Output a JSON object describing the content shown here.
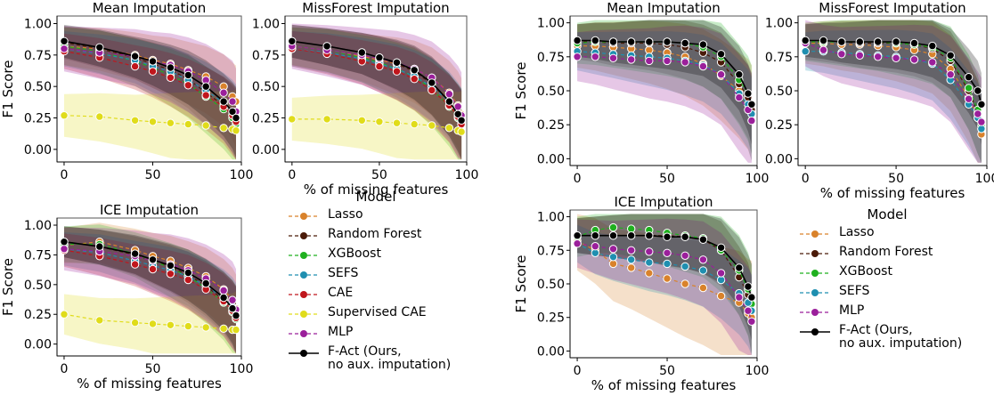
{
  "colors": {
    "Lasso": "#d9822b",
    "Random Forest": "#4a1a08",
    "XGBoost": "#1fb01f",
    "SEFS": "#1f8fb0",
    "CAE": "#c0161c",
    "Supervised CAE": "#e0dc1a",
    "MLP": "#9b1f9b",
    "F-Act (Ours,\n no aux. imputation)": "#000000"
  },
  "legend_left": {
    "title": "Model",
    "items": [
      "Lasso",
      "Random Forest",
      "XGBoost",
      "SEFS",
      "CAE",
      "Supervised CAE",
      "MLP",
      "F-Act (Ours,\n no aux. imputation)"
    ]
  },
  "legend_right": {
    "title": "Model",
    "items": [
      "Lasso",
      "Random Forest",
      "XGBoost",
      "SEFS",
      "MLP",
      "F-Act (Ours,\n no aux. imputation)"
    ]
  },
  "chart_data": [
    {
      "type": "line",
      "title": "Mean Imputation",
      "xlabel": "",
      "ylabel": "F1 Score",
      "xlim": [
        -4,
        100
      ],
      "ylim": [
        -0.1,
        1.06
      ],
      "xticks": [
        0,
        50,
        100
      ],
      "yticks": [
        0.0,
        0.25,
        0.5,
        0.75,
        1.0
      ],
      "x": [
        0,
        20,
        40,
        50,
        60,
        70,
        80,
        90,
        95,
        97
      ],
      "series": [
        {
          "name": "Lasso",
          "values": [
            0.82,
            0.8,
            0.75,
            0.71,
            0.68,
            0.63,
            0.58,
            0.5,
            0.42,
            0.38
          ],
          "band": 0.15
        },
        {
          "name": "Random Forest",
          "values": [
            0.85,
            0.8,
            0.73,
            0.68,
            0.63,
            0.56,
            0.45,
            0.35,
            0.27,
            0.22
          ],
          "band": 0.13
        },
        {
          "name": "XGBoost",
          "values": [
            0.82,
            0.78,
            0.7,
            0.65,
            0.59,
            0.52,
            0.42,
            0.32,
            0.25,
            0.2
          ],
          "band": 0.15
        },
        {
          "name": "SEFS",
          "values": [
            0.8,
            0.76,
            0.71,
            0.66,
            0.62,
            0.55,
            0.47,
            0.37,
            0.3,
            0.25
          ],
          "band": 0.14
        },
        {
          "name": "CAE",
          "values": [
            0.78,
            0.73,
            0.66,
            0.62,
            0.57,
            0.51,
            0.43,
            0.34,
            0.27,
            0.22
          ],
          "band": 0.14
        },
        {
          "name": "Supervised CAE",
          "values": [
            0.27,
            0.26,
            0.23,
            0.22,
            0.21,
            0.2,
            0.19,
            0.17,
            0.16,
            0.15
          ],
          "band": 0.17
        },
        {
          "name": "MLP",
          "values": [
            0.8,
            0.77,
            0.74,
            0.7,
            0.67,
            0.62,
            0.55,
            0.45,
            0.38,
            0.3
          ],
          "band": 0.18
        },
        {
          "name": "F-Act (Ours,\n no aux. imputation)",
          "values": [
            0.86,
            0.81,
            0.74,
            0.7,
            0.65,
            0.59,
            0.5,
            0.38,
            0.3,
            0.25
          ],
          "band": 0.13
        }
      ]
    },
    {
      "type": "line",
      "title": "MissForest Imputation",
      "xlabel": "% of missing features",
      "ylabel": "",
      "xlim": [
        -4,
        100
      ],
      "ylim": [
        -0.1,
        1.06
      ],
      "xticks": [
        0,
        50,
        100
      ],
      "yticks": [
        0.0,
        0.25,
        0.5,
        0.75,
        1.0
      ],
      "x": [
        0,
        20,
        40,
        50,
        60,
        70,
        80,
        90,
        95,
        97
      ],
      "series": [
        {
          "name": "Lasso",
          "values": [
            0.82,
            0.79,
            0.74,
            0.71,
            0.68,
            0.64,
            0.57,
            0.45,
            0.35,
            0.28
          ],
          "band": 0.15
        },
        {
          "name": "Random Forest",
          "values": [
            0.86,
            0.82,
            0.77,
            0.73,
            0.68,
            0.62,
            0.52,
            0.38,
            0.27,
            0.22
          ],
          "band": 0.13
        },
        {
          "name": "XGBoost",
          "values": [
            0.82,
            0.79,
            0.73,
            0.69,
            0.64,
            0.58,
            0.48,
            0.34,
            0.25,
            0.2
          ],
          "band": 0.15
        },
        {
          "name": "SEFS",
          "values": [
            0.8,
            0.77,
            0.72,
            0.68,
            0.64,
            0.58,
            0.5,
            0.38,
            0.28,
            0.22
          ],
          "band": 0.14
        },
        {
          "name": "CAE",
          "values": [
            0.8,
            0.76,
            0.7,
            0.66,
            0.62,
            0.56,
            0.47,
            0.35,
            0.26,
            0.2
          ],
          "band": 0.14
        },
        {
          "name": "Supervised CAE",
          "values": [
            0.24,
            0.24,
            0.23,
            0.22,
            0.21,
            0.2,
            0.19,
            0.17,
            0.15,
            0.14
          ],
          "band": 0.17
        },
        {
          "name": "MLP",
          "values": [
            0.82,
            0.79,
            0.75,
            0.72,
            0.69,
            0.64,
            0.57,
            0.44,
            0.34,
            0.27
          ],
          "band": 0.18
        },
        {
          "name": "F-Act (Ours,\n no aux. imputation)",
          "values": [
            0.86,
            0.82,
            0.77,
            0.73,
            0.69,
            0.63,
            0.53,
            0.38,
            0.28,
            0.23
          ],
          "band": 0.13
        }
      ]
    },
    {
      "type": "line",
      "title": "ICE Imputation",
      "xlabel": "% of missing features",
      "ylabel": "F1 Score",
      "xlim": [
        -4,
        100
      ],
      "ylim": [
        -0.1,
        1.06
      ],
      "xticks": [
        0,
        50,
        100
      ],
      "yticks": [
        0.0,
        0.25,
        0.5,
        0.75,
        1.0
      ],
      "x": [
        0,
        20,
        40,
        50,
        60,
        70,
        80,
        90,
        95,
        97
      ],
      "series": [
        {
          "name": "Lasso",
          "values": [
            0.83,
            0.86,
            0.79,
            0.74,
            0.7,
            0.64,
            0.57,
            0.46,
            0.37,
            0.3
          ],
          "band": 0.15
        },
        {
          "name": "Random Forest",
          "values": [
            0.86,
            0.82,
            0.75,
            0.7,
            0.65,
            0.58,
            0.49,
            0.37,
            0.28,
            0.23
          ],
          "band": 0.13
        },
        {
          "name": "XGBoost",
          "values": [
            0.84,
            0.84,
            0.76,
            0.7,
            0.64,
            0.57,
            0.47,
            0.35,
            0.27,
            0.21
          ],
          "band": 0.15
        },
        {
          "name": "SEFS",
          "values": [
            0.8,
            0.77,
            0.7,
            0.66,
            0.62,
            0.57,
            0.49,
            0.39,
            0.31,
            0.25
          ],
          "band": 0.14
        },
        {
          "name": "CAE",
          "values": [
            0.79,
            0.74,
            0.67,
            0.63,
            0.59,
            0.54,
            0.46,
            0.36,
            0.28,
            0.22
          ],
          "band": 0.14
        },
        {
          "name": "Supervised CAE",
          "values": [
            0.25,
            0.2,
            0.18,
            0.17,
            0.16,
            0.15,
            0.14,
            0.13,
            0.12,
            0.12
          ],
          "band": 0.17
        },
        {
          "name": "MLP",
          "values": [
            0.8,
            0.78,
            0.74,
            0.7,
            0.67,
            0.62,
            0.55,
            0.45,
            0.37,
            0.29
          ],
          "band": 0.18
        },
        {
          "name": "F-Act (Ours,\n no aux. imputation)",
          "values": [
            0.86,
            0.82,
            0.76,
            0.71,
            0.66,
            0.6,
            0.51,
            0.39,
            0.3,
            0.24
          ],
          "band": 0.13
        }
      ]
    },
    {
      "type": "line",
      "title": "Mean Imputation",
      "xlabel": "",
      "ylabel": "F1 Score",
      "xlim": [
        -4,
        100
      ],
      "ylim": [
        -0.05,
        1.05
      ],
      "xticks": [
        0,
        50,
        100
      ],
      "yticks": [
        0.0,
        0.25,
        0.5,
        0.75,
        1.0
      ],
      "x": [
        0,
        10,
        20,
        30,
        40,
        50,
        60,
        70,
        80,
        90,
        95,
        97
      ],
      "series": [
        {
          "name": "Lasso",
          "values": [
            0.83,
            0.83,
            0.82,
            0.81,
            0.8,
            0.78,
            0.75,
            0.7,
            0.61,
            0.5,
            0.44,
            0.38
          ],
          "band": 0.16
        },
        {
          "name": "Random Forest",
          "values": [
            0.86,
            0.86,
            0.85,
            0.85,
            0.85,
            0.84,
            0.82,
            0.78,
            0.71,
            0.55,
            0.45,
            0.36
          ],
          "band": 0.13
        },
        {
          "name": "XGBoost",
          "values": [
            0.85,
            0.86,
            0.86,
            0.86,
            0.86,
            0.86,
            0.85,
            0.82,
            0.75,
            0.58,
            0.48,
            0.4
          ],
          "band": 0.15
        },
        {
          "name": "SEFS",
          "values": [
            0.79,
            0.78,
            0.77,
            0.76,
            0.75,
            0.74,
            0.72,
            0.69,
            0.62,
            0.48,
            0.4,
            0.33
          ],
          "band": 0.14
        },
        {
          "name": "MLP",
          "values": [
            0.75,
            0.75,
            0.74,
            0.73,
            0.72,
            0.72,
            0.71,
            0.68,
            0.62,
            0.45,
            0.36,
            0.28
          ],
          "band": 0.18
        },
        {
          "name": "F-Act (Ours,\n no aux. imputation)",
          "values": [
            0.87,
            0.87,
            0.86,
            0.86,
            0.86,
            0.86,
            0.85,
            0.84,
            0.77,
            0.62,
            0.48,
            0.4
          ],
          "band": 0.12
        }
      ]
    },
    {
      "type": "line",
      "title": "MissForest Imputation",
      "xlabel": "% of missing features",
      "ylabel": "",
      "xlim": [
        -4,
        100
      ],
      "ylim": [
        -0.05,
        1.05
      ],
      "xticks": [
        0,
        50,
        100
      ],
      "yticks": [
        0.0,
        0.25,
        0.5,
        0.75,
        1.0
      ],
      "x": [
        0,
        10,
        20,
        30,
        40,
        50,
        60,
        70,
        80,
        90,
        95,
        97
      ],
      "series": [
        {
          "name": "Lasso",
          "values": [
            0.85,
            0.85,
            0.84,
            0.84,
            0.83,
            0.82,
            0.8,
            0.77,
            0.66,
            0.45,
            0.3,
            0.18
          ],
          "band": 0.15
        },
        {
          "name": "Random Forest",
          "values": [
            0.86,
            0.86,
            0.86,
            0.85,
            0.85,
            0.85,
            0.84,
            0.81,
            0.72,
            0.5,
            0.34,
            0.22
          ],
          "band": 0.13
        },
        {
          "name": "XGBoost",
          "values": [
            0.86,
            0.86,
            0.86,
            0.86,
            0.86,
            0.85,
            0.84,
            0.82,
            0.74,
            0.52,
            0.36,
            0.24
          ],
          "band": 0.14
        },
        {
          "name": "SEFS",
          "values": [
            0.79,
            0.79,
            0.78,
            0.77,
            0.76,
            0.75,
            0.73,
            0.7,
            0.58,
            0.4,
            0.3,
            0.22
          ],
          "band": 0.14
        },
        {
          "name": "MLP",
          "values": [
            0.85,
            0.8,
            0.77,
            0.76,
            0.75,
            0.74,
            0.73,
            0.71,
            0.62,
            0.44,
            0.33,
            0.27
          ],
          "band": 0.17
        },
        {
          "name": "F-Act (Ours,\n no aux. imputation)",
          "values": [
            0.87,
            0.87,
            0.86,
            0.86,
            0.86,
            0.86,
            0.85,
            0.83,
            0.76,
            0.6,
            0.5,
            0.4
          ],
          "band": 0.12
        }
      ]
    },
    {
      "type": "line",
      "title": "ICE Imputation",
      "xlabel": "% of missing features",
      "ylabel": "F1 Score",
      "xlim": [
        -4,
        100
      ],
      "ylim": [
        -0.05,
        1.05
      ],
      "xticks": [
        0,
        50,
        100
      ],
      "yticks": [
        0.0,
        0.25,
        0.5,
        0.75,
        1.0
      ],
      "x": [
        0,
        10,
        20,
        30,
        40,
        50,
        60,
        70,
        80,
        90,
        95,
        97
      ],
      "series": [
        {
          "name": "Lasso",
          "values": [
            0.82,
            0.75,
            0.65,
            0.62,
            0.58,
            0.54,
            0.5,
            0.47,
            0.41,
            0.36,
            0.28,
            0.25
          ],
          "band": 0.22
        },
        {
          "name": "Random Forest",
          "values": [
            0.86,
            0.86,
            0.86,
            0.86,
            0.86,
            0.86,
            0.85,
            0.83,
            0.75,
            0.55,
            0.42,
            0.3
          ],
          "band": 0.13
        },
        {
          "name": "XGBoost",
          "values": [
            0.85,
            0.9,
            0.92,
            0.91,
            0.9,
            0.88,
            0.86,
            0.84,
            0.75,
            0.6,
            0.46,
            0.35
          ],
          "band": 0.15
        },
        {
          "name": "SEFS",
          "values": [
            0.8,
            0.73,
            0.7,
            0.68,
            0.66,
            0.65,
            0.63,
            0.6,
            0.53,
            0.43,
            0.36,
            0.3
          ],
          "band": 0.14
        },
        {
          "name": "MLP",
          "values": [
            0.8,
            0.78,
            0.76,
            0.75,
            0.74,
            0.73,
            0.71,
            0.68,
            0.58,
            0.4,
            0.3,
            0.22
          ],
          "band": 0.18
        },
        {
          "name": "F-Act (Ours,\n no aux. imputation)",
          "values": [
            0.86,
            0.86,
            0.86,
            0.86,
            0.86,
            0.85,
            0.85,
            0.83,
            0.77,
            0.62,
            0.48,
            0.4
          ],
          "band": 0.13
        }
      ]
    }
  ]
}
